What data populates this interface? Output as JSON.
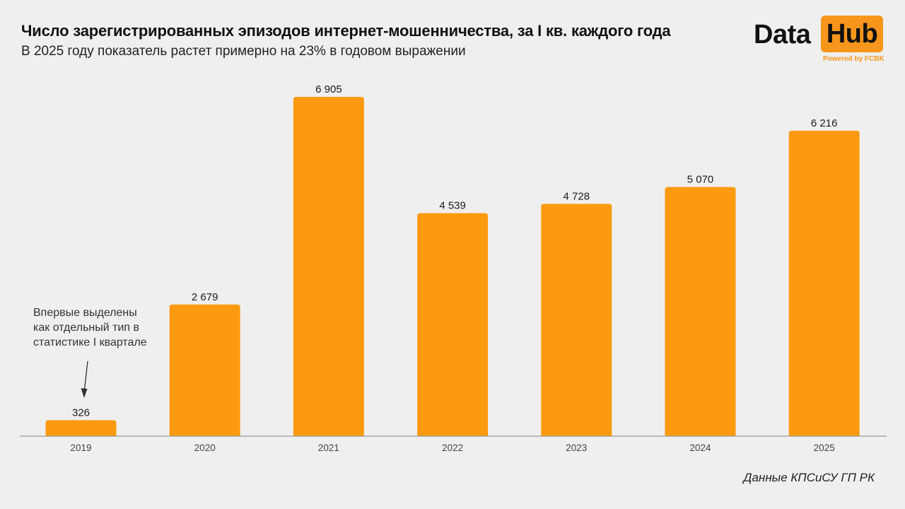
{
  "header": {
    "title": "Число зарегистрированных эпизодов интернет-мошенничества, за I кв. каждого года",
    "subtitle": "В 2025 году показатель растет примерно на 23% в годовом выражении"
  },
  "logo": {
    "word1": "Data",
    "word2": "Hub",
    "powered": "Powered by FCBK"
  },
  "annotation": {
    "lines": [
      "Впервые выделены",
      "как отдельный тип в",
      "статистике I квартале"
    ]
  },
  "source": "Данные КПСиСУ ГП РК",
  "colors": {
    "bar": "#fc9a0f",
    "brand": "#f7961c",
    "background": "#efefef"
  },
  "chart_data": {
    "type": "bar",
    "categories": [
      "2019",
      "2020",
      "2021",
      "2022",
      "2023",
      "2024",
      "2025"
    ],
    "values": [
      326,
      2679,
      6905,
      4539,
      4728,
      5070,
      6216
    ],
    "value_labels": [
      "326",
      "2 679",
      "6 905",
      "4 539",
      "4 728",
      "5 070",
      "6 216"
    ],
    "title": "Число зарегистрированных эпизодов интернет-мошенничества, за I кв. каждого года",
    "subtitle": "В 2025 году показатель растет примерно на 23% в годовом выражении",
    "ylim": [
      0,
      7000
    ],
    "grid": false,
    "legend": "none"
  }
}
